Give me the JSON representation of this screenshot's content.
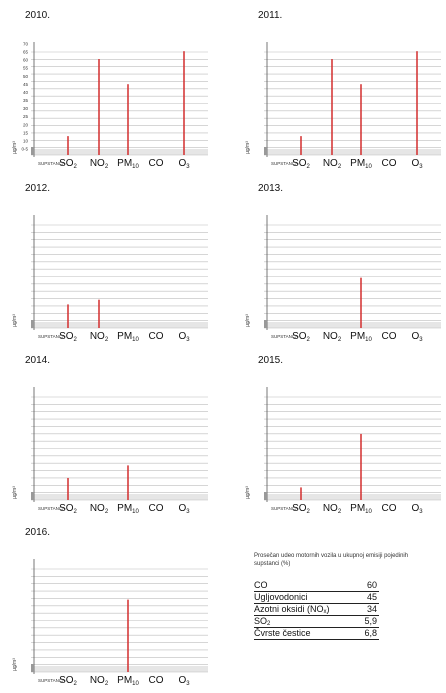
{
  "chart_data": [
    {
      "type": "bar",
      "title": "2010.",
      "categories": [
        "SO2",
        "NO2",
        "PM10",
        "CO",
        "O3"
      ],
      "values": [
        12,
        61,
        45,
        0,
        66
      ],
      "ylabel": "µg/m³",
      "ylim": [
        0,
        75
      ],
      "yticks": [
        "0-5",
        "10",
        "15",
        "20",
        "25",
        "30",
        "35",
        "40",
        "45",
        "50",
        "55",
        "60",
        "65",
        "70"
      ],
      "xlabel": "SUPSTANCA"
    },
    {
      "type": "bar",
      "title": "2011.",
      "categories": [
        "SO2",
        "NO2",
        "PM10",
        "CO",
        "O3"
      ],
      "values": [
        12,
        61,
        45,
        0,
        66
      ],
      "ylabel": "µg/m³",
      "ylim": [
        0,
        75
      ],
      "xlabel": "SUPSTANCA"
    },
    {
      "type": "bar",
      "title": "2012.",
      "categories": [
        "SO2",
        "NO2",
        "PM10",
        "CO",
        "O3"
      ],
      "values": [
        15,
        18,
        0,
        0,
        0
      ],
      "ylabel": "µg/m³",
      "ylim": [
        0,
        75
      ],
      "xlabel": "SUPSTANCA"
    },
    {
      "type": "bar",
      "title": "2013.",
      "categories": [
        "SO2",
        "NO2",
        "PM10",
        "CO",
        "O3"
      ],
      "values": [
        0,
        0,
        32,
        0,
        0
      ],
      "ylabel": "µg/m³",
      "ylim": [
        0,
        75
      ],
      "xlabel": "SUPSTANCA"
    },
    {
      "type": "bar",
      "title": "2014.",
      "categories": [
        "SO2",
        "NO2",
        "PM10",
        "CO",
        "O3"
      ],
      "values": [
        14,
        0,
        22,
        0,
        0
      ],
      "ylabel": "µg/m³",
      "ylim": [
        0,
        75
      ],
      "xlabel": "SUPSTANCA"
    },
    {
      "type": "bar",
      "title": "2015.",
      "categories": [
        "SO2",
        "NO2",
        "PM10",
        "CO",
        "O3"
      ],
      "values": [
        8,
        0,
        42,
        0,
        0
      ],
      "ylabel": "µg/m³",
      "ylim": [
        0,
        75
      ],
      "xlabel": "SUPSTANCA"
    },
    {
      "type": "bar",
      "title": "2016.",
      "categories": [
        "SO2",
        "NO2",
        "PM10",
        "CO",
        "O3"
      ],
      "values": [
        0,
        0,
        46,
        0,
        0
      ],
      "ylabel": "µg/m³",
      "ylim": [
        0,
        75
      ],
      "xlabel": "SUPSTANCA"
    }
  ],
  "category_labels": [
    {
      "base": "SO",
      "sub": "2"
    },
    {
      "base": "NO",
      "sub": "2"
    },
    {
      "base": "PM",
      "sub": "10"
    },
    {
      "base": "CO",
      "sub": ""
    },
    {
      "base": "O",
      "sub": "3"
    }
  ],
  "legend": {
    "title": "Prosečan udeo motornih vozila u ukupnoj emisiji pojedinih supstanci (%)",
    "rows": [
      {
        "name": "CO",
        "sub": "",
        "suffix": "",
        "value": "60"
      },
      {
        "name": "Ugljovodonici",
        "sub": "",
        "suffix": "",
        "value": "45"
      },
      {
        "name": "Azotni oksidi (NO",
        "sub": "x",
        "suffix": ")",
        "value": "34"
      },
      {
        "name": "SO",
        "sub": "2",
        "suffix": "",
        "value": "5,9"
      },
      {
        "name": "Čvrste čestice",
        "sub": "",
        "suffix": "",
        "value": "6,8"
      }
    ]
  },
  "colors": {
    "bar": "#d32f2f",
    "grid": "#bdbdbd",
    "axis": "#555555",
    "base_band": "#e6e6e6"
  }
}
